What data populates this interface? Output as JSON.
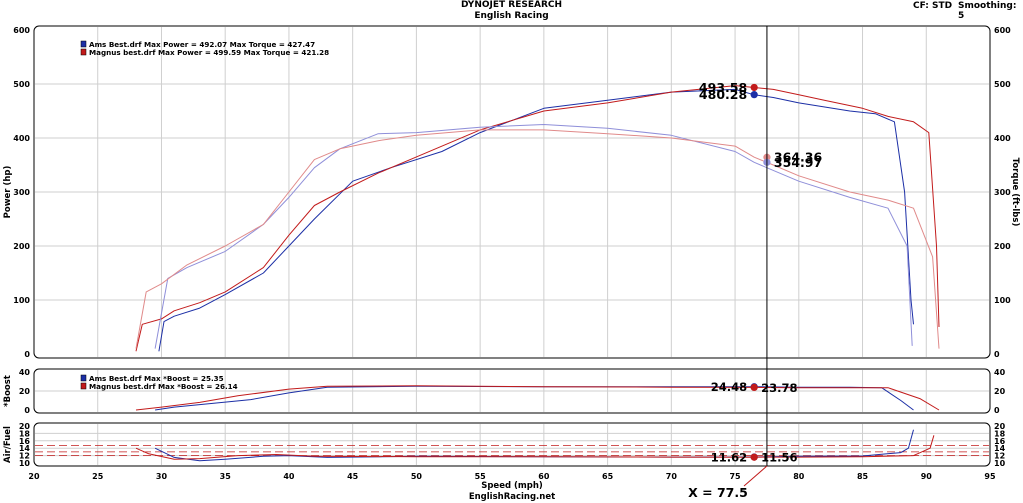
{
  "header": {
    "title": "DYNOJET RESEARCH",
    "subtitle": "English Racing",
    "cf_label": "CF: STD",
    "smoothing_label": "Smoothing: 5",
    "footer": "EnglishRacing.net",
    "cursor_label": "X = 77.5"
  },
  "colors": {
    "blue": "#1c2fa6",
    "red": "#c21b1b",
    "light_blue": "#8f8fd9",
    "light_red": "#e08a8a"
  },
  "chart_data": [
    {
      "type": "line",
      "panel": "power-torque",
      "title": "DYNOJET RESEARCH",
      "subtitle": "English Racing",
      "xlabel": "Speed (mph)",
      "ylabel": "Power (hp)",
      "ylabel_right": "Torque (ft-lbs)",
      "xlim": [
        20,
        95
      ],
      "ylim": [
        0,
        600
      ],
      "x_ticks": [
        20,
        25,
        30,
        35,
        40,
        45,
        50,
        55,
        60,
        65,
        70,
        75,
        80,
        85,
        90,
        95
      ],
      "y_ticks": [
        0,
        100,
        200,
        300,
        400,
        500,
        600
      ],
      "grid": true,
      "legend": [
        "Ams Best.drf Max Power = 492.07     Max Torque = 427.47",
        "Magnus best.drf Max Power = 499.59     Max Torque = 421.28"
      ],
      "series": [
        {
          "name": "Ams Best.drf Power",
          "color": "blue",
          "x": [
            29.8,
            30.2,
            31,
            33,
            35,
            38,
            40,
            42,
            45,
            48,
            52,
            55,
            60,
            65,
            70,
            75,
            76.5,
            78,
            80,
            84,
            86,
            87.5,
            88.3,
            88.8,
            89.0
          ],
          "y": [
            5,
            60,
            70,
            85,
            110,
            150,
            200,
            250,
            320,
            345,
            375,
            410,
            455,
            470,
            485,
            490,
            480,
            475,
            465,
            450,
            445,
            430,
            300,
            100,
            55
          ]
        },
        {
          "name": "Magnus best.drf Power",
          "color": "red",
          "x": [
            28,
            28.5,
            30,
            31,
            33,
            35,
            38,
            40,
            42,
            44,
            47,
            50,
            55,
            60,
            65,
            70,
            75,
            76.5,
            78,
            80,
            82,
            85,
            87,
            89,
            90.2,
            90.8,
            91.0
          ],
          "y": [
            5,
            55,
            65,
            80,
            95,
            115,
            160,
            220,
            275,
            300,
            335,
            365,
            415,
            450,
            465,
            485,
            497,
            493.58,
            490,
            480,
            470,
            455,
            440,
            430,
            410,
            200,
            50
          ]
        },
        {
          "name": "Ams Best.drf Torque",
          "color": "light_blue",
          "x": [
            29.5,
            30.5,
            32,
            35,
            38,
            40,
            42,
            44,
            47,
            50,
            55,
            60,
            65,
            70,
            75,
            76.5,
            78,
            80,
            84,
            87,
            88.5,
            88.9
          ],
          "y": [
            10,
            140,
            160,
            190,
            240,
            290,
            345,
            380,
            408,
            410,
            420,
            425,
            418,
            405,
            375,
            354.97,
            340,
            320,
            290,
            270,
            200,
            15
          ]
        },
        {
          "name": "Magnus best.drf Torque",
          "color": "light_red",
          "x": [
            28,
            28.8,
            30,
            32,
            35,
            38,
            40,
            42,
            44,
            47,
            50,
            55,
            60,
            65,
            70,
            75,
            76.5,
            78,
            80,
            84,
            87,
            89,
            90.5,
            91.0
          ],
          "y": [
            10,
            115,
            130,
            165,
            200,
            240,
            300,
            360,
            380,
            395,
            405,
            415,
            415,
            408,
            400,
            385,
            364.36,
            350,
            330,
            300,
            285,
            270,
            180,
            10
          ]
        }
      ],
      "markers": [
        {
          "label": "493.58",
          "x": 76.5,
          "y": 493.58,
          "color": "red",
          "side": "left"
        },
        {
          "label": "480.28",
          "x": 76.5,
          "y": 480.28,
          "color": "blue",
          "side": "left"
        },
        {
          "label": "364.36",
          "x": 77.5,
          "y": 364.36,
          "color": "light_red",
          "side": "right"
        },
        {
          "label": "354.97",
          "x": 77.5,
          "y": 354.97,
          "color": "light_blue",
          "side": "right"
        }
      ]
    },
    {
      "type": "line",
      "panel": "boost",
      "ylabel": "*Boost",
      "xlim": [
        20,
        95
      ],
      "ylim": [
        0,
        40
      ],
      "y_ticks": [
        0,
        20,
        40
      ],
      "legend": [
        "Ams Best.drf Max *Boost = 25.35",
        "Magnus best.drf Max *Boost = 26.14"
      ],
      "series": [
        {
          "name": "Ams Best.drf Boost",
          "color": "blue",
          "x": [
            29.5,
            31,
            34,
            37,
            40,
            43,
            50,
            60,
            70,
            76.5,
            80,
            84,
            86.5,
            88,
            89
          ],
          "y": [
            0,
            3,
            7,
            11,
            18,
            24,
            25,
            24.5,
            24.5,
            24.48,
            24,
            24,
            23.5,
            10,
            0
          ]
        },
        {
          "name": "Magnus best.drf Boost",
          "color": "red",
          "x": [
            28,
            30,
            33,
            36,
            40,
            43,
            50,
            60,
            70,
            76.5,
            80,
            84,
            87,
            89.5,
            91
          ],
          "y": [
            0,
            3,
            8,
            15,
            22,
            25,
            25.5,
            24.5,
            24,
            23.78,
            23.5,
            23.5,
            23.5,
            12,
            0
          ]
        }
      ],
      "markers": [
        {
          "label": "24.48",
          "x": 76.5,
          "y": 24.48,
          "color": "blue",
          "side": "left"
        },
        {
          "label": "23.78",
          "x": 76.5,
          "y": 23.78,
          "color": "red",
          "side": "right"
        }
      ]
    },
    {
      "type": "line",
      "panel": "air-fuel",
      "ylabel": "Air/Fuel",
      "xlim": [
        20,
        95
      ],
      "ylim": [
        10,
        20
      ],
      "y_ticks": [
        10,
        12,
        14,
        16,
        18,
        20
      ],
      "series": [
        {
          "name": "Ams Best.drf AFR",
          "color": "blue",
          "x": [
            29.5,
            31,
            33,
            35,
            38,
            40,
            43,
            50,
            60,
            70,
            76.5,
            80,
            85,
            88,
            88.6,
            89
          ],
          "y": [
            14,
            11.5,
            10.6,
            11,
            11.8,
            12,
            11.5,
            11.8,
            11.7,
            11.6,
            11.62,
            11.8,
            11.9,
            12.8,
            14,
            19
          ]
        },
        {
          "name": "Magnus best.drf AFR",
          "color": "red",
          "x": [
            28,
            29,
            31,
            33,
            36,
            39,
            42,
            50,
            60,
            70,
            76.5,
            80,
            85,
            89,
            90.3,
            90.6
          ],
          "y": [
            14,
            12.5,
            11,
            11.2,
            12,
            12.3,
            11.8,
            11.7,
            11.7,
            11.6,
            11.56,
            11.6,
            11.7,
            12,
            14,
            17.5
          ]
        }
      ],
      "markers": [
        {
          "label": "11.62",
          "x": 76.5,
          "y": 11.62,
          "color": "blue",
          "side": "left"
        },
        {
          "label": "11.56",
          "x": 76.5,
          "y": 11.56,
          "color": "red",
          "side": "right"
        }
      ]
    }
  ]
}
